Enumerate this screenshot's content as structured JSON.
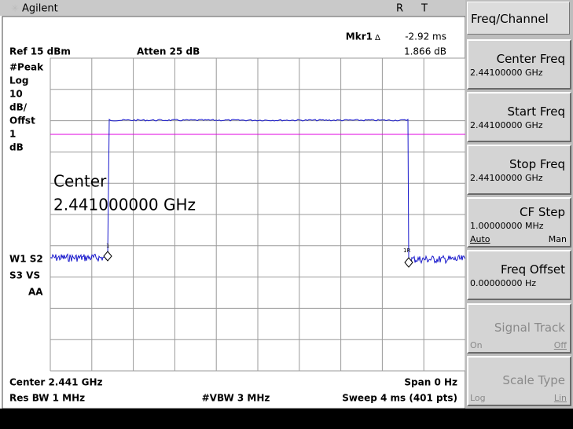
{
  "header": {
    "brand": "Agilent",
    "status_r": "R",
    "status_t": "T"
  },
  "marker": {
    "label": "Mkr1",
    "delta": "Δ",
    "time": "-2.92 ms",
    "level": "1.866 dB"
  },
  "reference": "Ref 15 dBm",
  "attenuation": "Atten 25 dB",
  "left_labels": [
    "#Peak",
    "Log",
    "10",
    "dB/",
    "Offst",
    "1",
    "dB"
  ],
  "trace_labels": [
    "W1 S2",
    "S3 VS",
    "AA"
  ],
  "annotation": {
    "line1": "Center",
    "line2": "2.441000000 GHz"
  },
  "trace_markers": [
    "1",
    "1R"
  ],
  "footer": {
    "center": "Center 2.441 GHz",
    "span": "Span 0 Hz",
    "rbw": "Res BW 1 MHz",
    "vbw": "#VBW 3 MHz",
    "sweep": "Sweep 4 ms (401 pts)"
  },
  "menu": {
    "title": "Freq/Channel",
    "keys": [
      {
        "label": "Center Freq",
        "value": "2.44100000 GHz"
      },
      {
        "label": "Start Freq",
        "value": "2.44100000 GHz"
      },
      {
        "label": "Stop Freq",
        "value": "2.44100000 GHz"
      },
      {
        "label": "CF Step",
        "value": "1.00000000 MHz",
        "options": [
          "Auto",
          "Man"
        ]
      },
      {
        "label": "Freq Offset",
        "value": "0.00000000  Hz"
      },
      {
        "label": "Signal Track",
        "options": [
          "On",
          "Off"
        ]
      },
      {
        "label": "Scale Type",
        "options": [
          "Log",
          "Lin"
        ]
      }
    ]
  }
}
